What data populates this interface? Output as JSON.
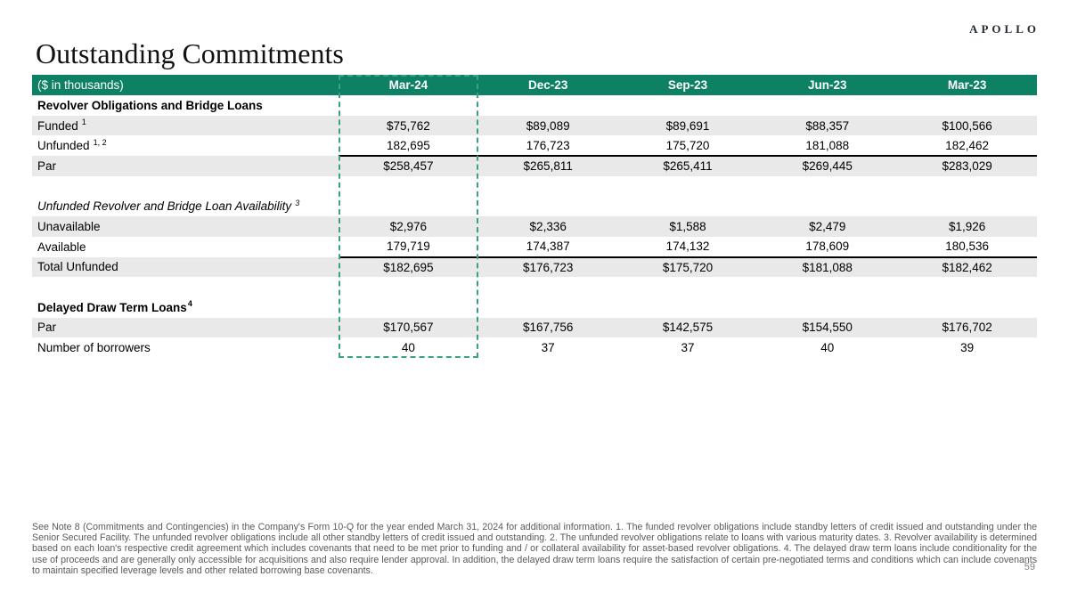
{
  "brand": {
    "logo": "APOLLO"
  },
  "page": {
    "title": "Outstanding Commitments",
    "page_number": "59"
  },
  "colors": {
    "header_bg": "#0E8165",
    "shade_bg": "#E9E9E9",
    "highlight_border": "#3AA183"
  },
  "table": {
    "unit_label": "($ in thousands)",
    "columns": [
      "Mar-24",
      "Dec-23",
      "Sep-23",
      "Jun-23",
      "Mar-23"
    ],
    "highlighted_column": "Mar-24",
    "rows": [
      {
        "label": "Revolver Obligations and Bridge Loans",
        "sup": "",
        "style": "section-bold",
        "shade": false,
        "topline": false,
        "values": [
          "",
          "",
          "",
          "",
          ""
        ]
      },
      {
        "label": "Funded",
        "sup": "1",
        "sup_gap": true,
        "style": "data",
        "shade": true,
        "topline": false,
        "values": [
          "$75,762",
          "$89,089",
          "$89,691",
          "$88,357",
          "$100,566"
        ]
      },
      {
        "label": "Unfunded",
        "sup": "1, 2",
        "sup_gap": true,
        "style": "data",
        "shade": false,
        "topline": false,
        "values": [
          "182,695",
          "176,723",
          "175,720",
          "181,088",
          "182,462"
        ]
      },
      {
        "label": "Par",
        "sup": "",
        "style": "data",
        "shade": true,
        "topline": true,
        "values": [
          "$258,457",
          "$265,811",
          "$265,411",
          "$269,445",
          "$283,029"
        ]
      },
      {
        "label": "",
        "sup": "",
        "style": "blank",
        "shade": false,
        "topline": false,
        "values": [
          "",
          "",
          "",
          "",
          ""
        ]
      },
      {
        "label": "Unfunded Revolver and Bridge Loan Availability",
        "sup": "3",
        "sup_gap": true,
        "style": "section-italic",
        "shade": false,
        "topline": false,
        "values": [
          "",
          "",
          "",
          "",
          ""
        ]
      },
      {
        "label": "Unavailable",
        "sup": "",
        "style": "data",
        "shade": true,
        "topline": false,
        "values": [
          "$2,976",
          "$2,336",
          "$1,588",
          "$2,479",
          "$1,926"
        ]
      },
      {
        "label": "Available",
        "sup": "",
        "style": "data",
        "shade": false,
        "topline": false,
        "values": [
          "179,719",
          "174,387",
          "174,132",
          "178,609",
          "180,536"
        ]
      },
      {
        "label": "Total Unfunded",
        "sup": "",
        "style": "data",
        "shade": true,
        "topline": true,
        "values": [
          "$182,695",
          "$176,723",
          "$175,720",
          "$181,088",
          "$182,462"
        ]
      },
      {
        "label": "",
        "sup": "",
        "style": "blank",
        "shade": false,
        "topline": false,
        "values": [
          "",
          "",
          "",
          "",
          ""
        ]
      },
      {
        "label": "Delayed Draw Term Loans",
        "sup": "4",
        "sup_gap": false,
        "style": "section-bold",
        "shade": false,
        "topline": false,
        "values": [
          "",
          "",
          "",
          "",
          ""
        ]
      },
      {
        "label": "Par",
        "sup": "",
        "style": "data",
        "shade": true,
        "topline": false,
        "values": [
          "$170,567",
          "$167,756",
          "$142,575",
          "$154,550",
          "$176,702"
        ]
      },
      {
        "label": "Number of borrowers",
        "sup": "",
        "style": "data",
        "shade": false,
        "topline": false,
        "values": [
          "40",
          "37",
          "37",
          "40",
          "39"
        ]
      }
    ]
  },
  "footnote": "See Note 8 (Commitments and Contingencies) in the Company's Form 10-Q for the year ended March 31, 2024 for additional information. 1. The funded revolver obligations include standby letters of credit issued and outstanding under the Senior Secured Facility. The unfunded revolver obligations include all other standby letters of credit issued and outstanding. 2. The unfunded revolver obligations relate to loans with various maturity dates. 3. Revolver availability is determined based on each loan's respective credit agreement which includes covenants that need to be met prior to funding and / or collateral availability for asset-based revolver obligations. 4. The delayed draw term loans include conditionality for the use of proceeds and are generally only accessible for acquisitions and also require lender approval. In addition, the delayed draw term loans require the satisfaction of certain pre-negotiated terms and conditions which can include covenants to maintain specified leverage levels and other related borrowing base covenants."
}
